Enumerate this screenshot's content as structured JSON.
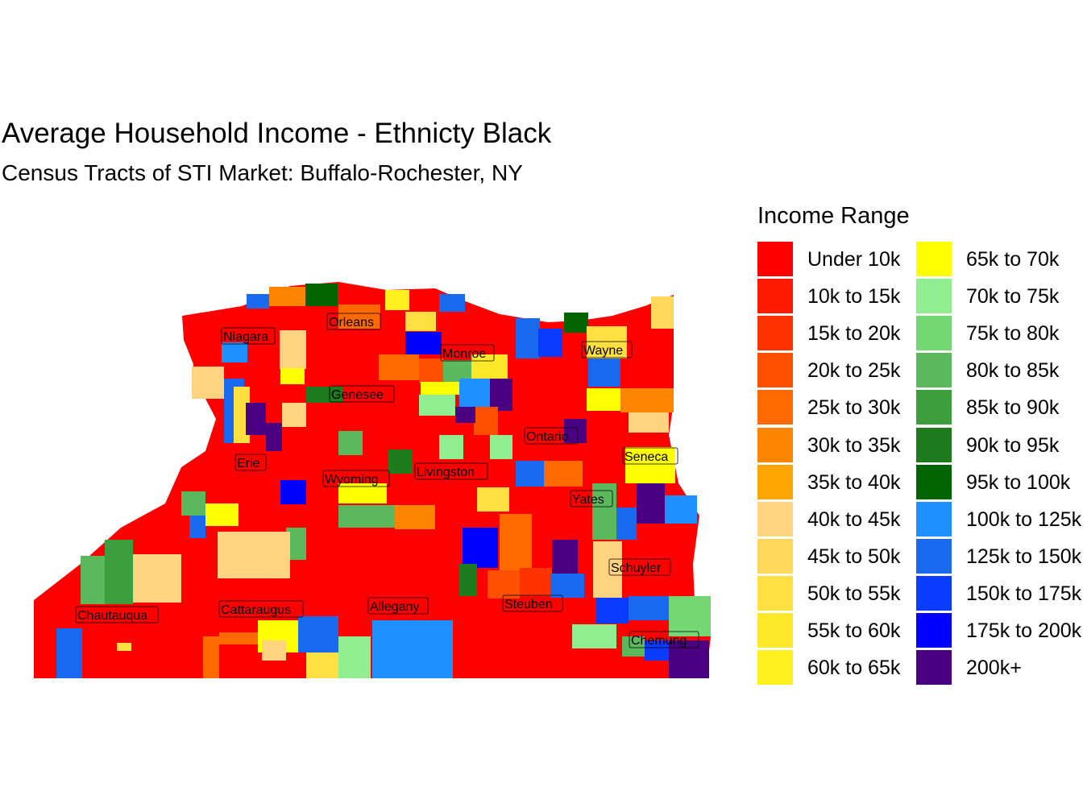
{
  "title": "Average Household Income - Ethnicty Black",
  "subtitle": "Census Tracts of STI Market: Buffalo-Rochester, NY",
  "legend": {
    "title": "Income Range",
    "items": [
      {
        "label": "Under 10k",
        "color": "#FF0000"
      },
      {
        "label": "10k to 15k",
        "color": "#FF1A00"
      },
      {
        "label": "15k to 20k",
        "color": "#FF3300"
      },
      {
        "label": "20k to 25k",
        "color": "#FF5000"
      },
      {
        "label": "25k to 30k",
        "color": "#FF6A00"
      },
      {
        "label": "30k to 35k",
        "color": "#FF8400"
      },
      {
        "label": "35k to 40k",
        "color": "#FFA500"
      },
      {
        "label": "40k to 45k",
        "color": "#FFD37F"
      },
      {
        "label": "45k to 50k",
        "color": "#FFD85A"
      },
      {
        "label": "50k to 55k",
        "color": "#FFE040"
      },
      {
        "label": "55k to 60k",
        "color": "#FFE82A"
      },
      {
        "label": "60k to 65k",
        "color": "#FFF020"
      },
      {
        "label": "65k to 70k",
        "color": "#FFFF00"
      },
      {
        "label": "70k to 75k",
        "color": "#90EE90"
      },
      {
        "label": "75k to 80k",
        "color": "#73D873"
      },
      {
        "label": "80k to 85k",
        "color": "#5CB85C"
      },
      {
        "label": "85k to 90k",
        "color": "#3D9E3D"
      },
      {
        "label": "90k to 95k",
        "color": "#1E7B1E"
      },
      {
        "label": "95k to 100k",
        "color": "#006400"
      },
      {
        "label": "100k to 125k",
        "color": "#1E90FF"
      },
      {
        "label": "125k to 150k",
        "color": "#1A6AF0"
      },
      {
        "label": "150k to 175k",
        "color": "#0A3CFF"
      },
      {
        "label": "175k to 200k",
        "color": "#0000FF"
      },
      {
        "label": "200k+",
        "color": "#4B0082"
      }
    ]
  },
  "counties": [
    "Niagara",
    "Orleans",
    "Monroe",
    "Wayne",
    "Genesee",
    "Ontario",
    "Erie",
    "Seneca",
    "Wyoming",
    "Livingston",
    "Yates",
    "Schuyler",
    "Chautauqua",
    "Cattaraugus",
    "Allegany",
    "Steuben",
    "Chemung"
  ]
}
